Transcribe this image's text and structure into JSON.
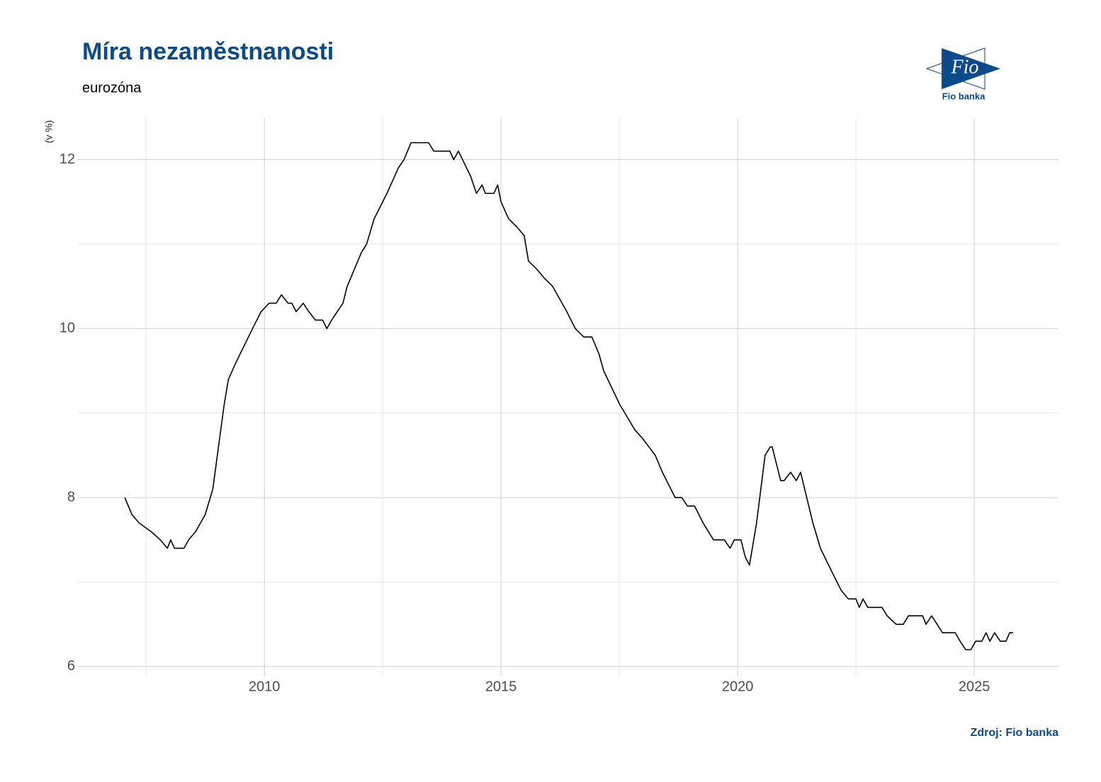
{
  "chart_data": {
    "type": "line",
    "title": "Míra nezaměstnanosti",
    "subtitle": "eurozóna",
    "y_label": "(v %)",
    "source": "Zdroj: Fio banka",
    "logo_mark": "Fio",
    "logo_text": "Fio banka",
    "color": "#000000",
    "grid": true,
    "xlim": [
      2006.06,
      2026.78
    ],
    "ylim": [
      5.89,
      12.49
    ],
    "xticks": [
      2010,
      2015,
      2020,
      2025
    ],
    "xticks_minor": [
      2007.5,
      2012.5,
      2017.5,
      2022.5
    ],
    "yticks": [
      6,
      8,
      10,
      12
    ],
    "yticks_minor": [
      7,
      9,
      11
    ],
    "x": [
      2007.05,
      2007.2,
      2007.35,
      2007.6,
      2007.8,
      2007.95,
      2008.02,
      2008.1,
      2008.3,
      2008.4,
      2008.55,
      2008.75,
      2008.91,
      2009.03,
      2009.15,
      2009.24,
      2009.4,
      2009.75,
      2009.93,
      2010.1,
      2010.25,
      2010.36,
      2010.5,
      2010.58,
      2010.67,
      2010.82,
      2010.94,
      2011.08,
      2011.23,
      2011.32,
      2011.42,
      2011.66,
      2011.75,
      2012.05,
      2012.16,
      2012.32,
      2012.59,
      2012.83,
      2012.95,
      2013.1,
      2013.47,
      2013.58,
      2013.92,
      2014.0,
      2014.1,
      2014.36,
      2014.48,
      2014.6,
      2014.67,
      2014.85,
      2014.93,
      2015.0,
      2015.16,
      2015.34,
      2015.49,
      2015.58,
      2015.76,
      2015.91,
      2016.09,
      2016.39,
      2016.57,
      2016.75,
      2016.92,
      2017.07,
      2017.17,
      2017.34,
      2017.51,
      2017.83,
      2017.99,
      2018.26,
      2018.41,
      2018.68,
      2018.82,
      2018.94,
      2019.09,
      2019.27,
      2019.49,
      2019.72,
      2019.84,
      2019.93,
      2020.07,
      2020.16,
      2020.25,
      2020.4,
      2020.58,
      2020.69,
      2020.73,
      2020.91,
      2020.98,
      2021.12,
      2021.24,
      2021.33,
      2021.59,
      2021.75,
      2022.01,
      2022.19,
      2022.34,
      2022.5,
      2022.57,
      2022.65,
      2022.75,
      2023.05,
      2023.16,
      2023.35,
      2023.5,
      2023.61,
      2023.91,
      2023.98,
      2024.1,
      2024.33,
      2024.6,
      2024.7,
      2024.82,
      2024.93,
      2025.03,
      2025.16,
      2025.25,
      2025.33,
      2025.43,
      2025.55,
      2025.67,
      2025.75,
      2025.82
    ],
    "values": [
      8.0,
      7.8,
      7.7,
      7.6,
      7.5,
      7.4,
      7.5,
      7.4,
      7.4,
      7.5,
      7.6,
      7.8,
      8.1,
      8.6,
      9.1,
      9.4,
      9.6,
      10.0,
      10.2,
      10.3,
      10.3,
      10.4,
      10.3,
      10.3,
      10.2,
      10.3,
      10.2,
      10.1,
      10.1,
      10.0,
      10.1,
      10.3,
      10.5,
      10.9,
      11.0,
      11.3,
      11.6,
      11.9,
      12.0,
      12.2,
      12.2,
      12.1,
      12.1,
      12.0,
      12.1,
      11.8,
      11.6,
      11.7,
      11.6,
      11.6,
      11.7,
      11.5,
      11.3,
      11.2,
      11.1,
      10.8,
      10.7,
      10.6,
      10.5,
      10.2,
      10.0,
      9.9,
      9.9,
      9.7,
      9.5,
      9.3,
      9.1,
      8.8,
      8.7,
      8.5,
      8.3,
      8.0,
      8.0,
      7.9,
      7.9,
      7.7,
      7.5,
      7.5,
      7.4,
      7.5,
      7.5,
      7.3,
      7.2,
      7.7,
      8.5,
      8.6,
      8.6,
      8.2,
      8.2,
      8.3,
      8.2,
      8.3,
      7.7,
      7.4,
      7.1,
      6.9,
      6.8,
      6.8,
      6.7,
      6.8,
      6.7,
      6.7,
      6.6,
      6.5,
      6.5,
      6.6,
      6.6,
      6.5,
      6.6,
      6.4,
      6.4,
      6.3,
      6.2,
      6.2,
      6.3,
      6.3,
      6.4,
      6.3,
      6.4,
      6.3,
      6.3,
      6.4,
      6.4
    ]
  }
}
